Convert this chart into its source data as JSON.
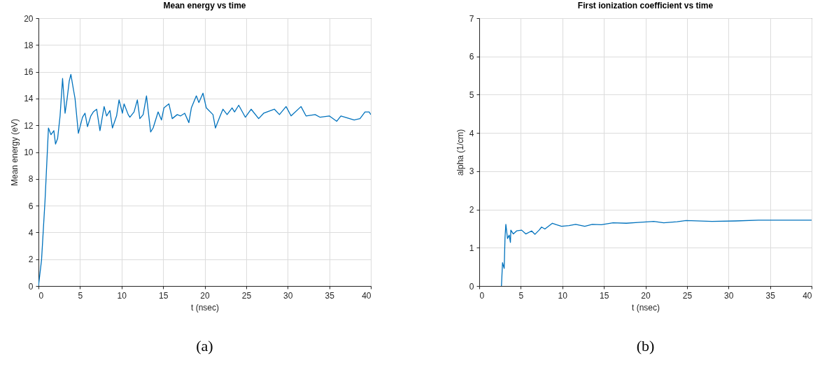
{
  "chart_data": [
    {
      "type": "line",
      "title": "Mean energy vs time",
      "xlabel": "t (nsec)",
      "ylabel": "Mean energy (eV)",
      "annotations": [
        "(a)"
      ],
      "xlim": [
        0,
        40
      ],
      "xticks": [
        0,
        5,
        10,
        15,
        20,
        25,
        30,
        35,
        40
      ],
      "ylim": [
        0,
        20
      ],
      "yticks": [
        0,
        2,
        4,
        6,
        8,
        10,
        12,
        14,
        16,
        18,
        20
      ],
      "grid": true,
      "series": [
        {
          "color": "#0072bd",
          "x": [
            0,
            0.37,
            0.79,
            1.2,
            1.5,
            1.85,
            2.05,
            2.3,
            2.6,
            2.9,
            3.2,
            3.45,
            3.7,
            3.9,
            4.2,
            4.4,
            4.8,
            5.3,
            5.6,
            5.9,
            6.3,
            6.6,
            7.0,
            7.4,
            7.9,
            8.2,
            8.6,
            8.9,
            9.4,
            9.7,
            10.1,
            10.3,
            10.8,
            11.0,
            11.5,
            11.9,
            12.2,
            12.6,
            13.0,
            13.5,
            13.8,
            14.4,
            14.8,
            15.1,
            15.7,
            16.1,
            16.7,
            17.1,
            17.6,
            18.1,
            18.4,
            19.0,
            19.3,
            19.8,
            20.2,
            21.0,
            21.3,
            21.8,
            22.2,
            22.7,
            23.3,
            23.6,
            24.1,
            24.9,
            25.6,
            26.5,
            27.1,
            28.4,
            29.0,
            29.8,
            30.4,
            31.6,
            32.2,
            33.3,
            33.9,
            35.0,
            35.9,
            36.4,
            38.0,
            38.7,
            39.3,
            39.8,
            40
          ],
          "values": [
            0,
            1.95,
            6.4,
            11.8,
            11.3,
            11.6,
            10.6,
            11.0,
            12.7,
            15.5,
            12.9,
            14.0,
            15.3,
            15.8,
            14.7,
            14.0,
            11.4,
            12.6,
            12.9,
            11.9,
            12.7,
            13.0,
            13.2,
            11.6,
            13.4,
            12.7,
            13.1,
            11.8,
            12.7,
            13.9,
            12.9,
            13.6,
            12.8,
            12.6,
            13.0,
            13.9,
            12.5,
            12.8,
            14.2,
            11.5,
            11.8,
            13.0,
            12.4,
            13.3,
            13.6,
            12.5,
            12.8,
            12.7,
            12.9,
            12.2,
            13.3,
            14.2,
            13.7,
            14.4,
            13.3,
            12.8,
            11.8,
            12.6,
            13.2,
            12.8,
            13.3,
            13.0,
            13.5,
            12.6,
            13.2,
            12.5,
            12.9,
            13.2,
            12.8,
            13.4,
            12.7,
            13.4,
            12.7,
            12.8,
            12.6,
            12.7,
            12.3,
            12.7,
            12.4,
            12.5,
            13.0,
            13.0,
            12.8
          ]
        }
      ]
    },
    {
      "type": "line",
      "title": "First ionization coefficient vs time",
      "xlabel": "t (nsec)",
      "ylabel": "alpha (1/cm)",
      "annotations": [
        "(b)"
      ],
      "xlim": [
        0,
        40
      ],
      "xticks": [
        0,
        5,
        10,
        15,
        20,
        25,
        30,
        35,
        40
      ],
      "ylim": [
        0,
        7
      ],
      "yticks": [
        0,
        1,
        2,
        3,
        4,
        5,
        6,
        7
      ],
      "grid": true,
      "series": [
        {
          "color": "#0072bd",
          "x": [
            2.67,
            2.8,
            3.0,
            3.1,
            3.2,
            3.4,
            3.6,
            3.75,
            3.8,
            4.1,
            4.5,
            5.1,
            5.6,
            6.3,
            6.7,
            7.2,
            7.5,
            7.9,
            8.8,
            9.3,
            9.9,
            10.8,
            11.6,
            12.7,
            13.6,
            14.7,
            16.1,
            17.7,
            19.1,
            20.4,
            21.0,
            22.2,
            23.8,
            24.9,
            28.0,
            30.8,
            33.6,
            39.7,
            40
          ],
          "values": [
            0,
            0.61,
            0.46,
            1.27,
            1.61,
            1.24,
            1.33,
            1.14,
            1.46,
            1.36,
            1.44,
            1.46,
            1.36,
            1.44,
            1.35,
            1.46,
            1.54,
            1.49,
            1.64,
            1.6,
            1.56,
            1.58,
            1.61,
            1.56,
            1.61,
            1.6,
            1.65,
            1.64,
            1.66,
            1.68,
            1.69,
            1.65,
            1.68,
            1.71,
            1.69,
            1.7,
            1.72,
            1.72,
            1.72
          ]
        }
      ]
    }
  ]
}
